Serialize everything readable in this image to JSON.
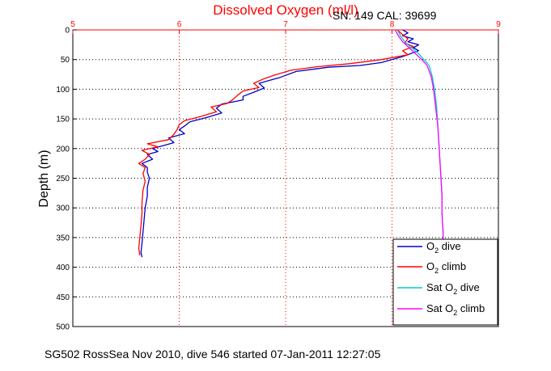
{
  "chart_data": {
    "type": "line",
    "title": "Dissolved Oxygen (ml/l)",
    "calibration_text": "SN: 149  CAL: 39699",
    "ylabel": "Depth (m)",
    "footer": "SG502 RossSea Nov 2010, dive 546 started 07-Jan-2011 12:27:05",
    "xlim": [
      5,
      9
    ],
    "ylim": [
      0,
      500
    ],
    "y_reversed": true,
    "x_ticks": [
      5,
      6,
      7,
      8,
      9
    ],
    "x_tick_labels": [
      "5",
      "6",
      "7",
      "8",
      "9"
    ],
    "y_ticks": [
      0,
      50,
      100,
      150,
      200,
      250,
      300,
      350,
      400,
      450,
      500
    ],
    "y_tick_labels": [
      "0",
      "50",
      "100",
      "150",
      "200",
      "250",
      "300",
      "350",
      "400",
      "450",
      "500"
    ],
    "grid": true,
    "x_axis_position": "top",
    "legend_position": "bottom-right",
    "colors": {
      "title": "#ff0000",
      "x_axis": "#ff0000",
      "grid_x": "#ff0000",
      "grid_y": "#000000",
      "o2_dive": "#0000cc",
      "o2_climb": "#ff0000",
      "sat_dive": "#00cccc",
      "sat_climb": "#ff00ff"
    },
    "series": [
      {
        "name": "O2 dive",
        "legend_base": "O",
        "legend_sub": "2",
        "legend_rest": " dive",
        "color": "#0000cc",
        "points": [
          [
            8.1,
            0
          ],
          [
            8.15,
            5
          ],
          [
            8.1,
            10
          ],
          [
            8.2,
            15
          ],
          [
            8.15,
            20
          ],
          [
            8.25,
            25
          ],
          [
            8.2,
            30
          ],
          [
            8.25,
            35
          ],
          [
            8.1,
            45
          ],
          [
            7.9,
            55
          ],
          [
            7.7,
            60
          ],
          [
            7.4,
            63
          ],
          [
            7.1,
            70
          ],
          [
            6.95,
            80
          ],
          [
            6.85,
            85
          ],
          [
            6.75,
            90
          ],
          [
            6.8,
            98
          ],
          [
            6.7,
            105
          ],
          [
            6.6,
            112
          ],
          [
            6.6,
            118
          ],
          [
            6.4,
            125
          ],
          [
            6.35,
            132
          ],
          [
            6.4,
            140
          ],
          [
            6.25,
            148
          ],
          [
            6.1,
            155
          ],
          [
            6.05,
            162
          ],
          [
            6.0,
            168
          ],
          [
            6.05,
            175
          ],
          [
            5.9,
            182
          ],
          [
            5.95,
            190
          ],
          [
            5.85,
            195
          ],
          [
            5.75,
            200
          ],
          [
            5.8,
            205
          ],
          [
            5.7,
            210
          ],
          [
            5.75,
            218
          ],
          [
            5.65,
            225
          ],
          [
            5.7,
            232
          ],
          [
            5.7,
            240
          ],
          [
            5.72,
            250
          ],
          [
            5.7,
            265
          ],
          [
            5.7,
            280
          ],
          [
            5.68,
            300
          ],
          [
            5.67,
            320
          ],
          [
            5.66,
            340
          ],
          [
            5.65,
            360
          ],
          [
            5.64,
            375
          ],
          [
            5.65,
            383
          ]
        ]
      },
      {
        "name": "O2 climb",
        "legend_base": "O",
        "legend_sub": "2",
        "legend_rest": " climb",
        "color": "#ff0000",
        "points": [
          [
            8.05,
            0
          ],
          [
            8.1,
            8
          ],
          [
            8.15,
            15
          ],
          [
            8.12,
            22
          ],
          [
            8.2,
            28
          ],
          [
            8.1,
            35
          ],
          [
            8.15,
            42
          ],
          [
            7.9,
            50
          ],
          [
            7.6,
            57
          ],
          [
            7.3,
            62
          ],
          [
            7.05,
            68
          ],
          [
            6.9,
            76
          ],
          [
            6.8,
            82
          ],
          [
            6.7,
            90
          ],
          [
            6.75,
            97
          ],
          [
            6.6,
            103
          ],
          [
            6.55,
            110
          ],
          [
            6.5,
            118
          ],
          [
            6.45,
            124
          ],
          [
            6.3,
            130
          ],
          [
            6.35,
            138
          ],
          [
            6.2,
            146
          ],
          [
            6.05,
            153
          ],
          [
            6.0,
            160
          ],
          [
            5.98,
            168
          ],
          [
            5.95,
            176
          ],
          [
            5.9,
            185
          ],
          [
            5.7,
            192
          ],
          [
            5.8,
            197
          ],
          [
            5.65,
            203
          ],
          [
            5.72,
            210
          ],
          [
            5.68,
            218
          ],
          [
            5.62,
            225
          ],
          [
            5.68,
            232
          ],
          [
            5.66,
            242
          ],
          [
            5.68,
            255
          ],
          [
            5.66,
            270
          ],
          [
            5.65,
            290
          ],
          [
            5.65,
            310
          ],
          [
            5.64,
            330
          ],
          [
            5.63,
            350
          ],
          [
            5.62,
            368
          ],
          [
            5.63,
            380
          ]
        ]
      },
      {
        "name": "Sat O2 dive",
        "legend_base": "Sat O",
        "legend_sub": "2",
        "legend_rest": " dive",
        "color": "#00cccc",
        "points": [
          [
            8.05,
            0
          ],
          [
            8.08,
            10
          ],
          [
            8.12,
            20
          ],
          [
            8.18,
            30
          ],
          [
            8.25,
            40
          ],
          [
            8.3,
            50
          ],
          [
            8.35,
            60
          ],
          [
            8.38,
            80
          ],
          [
            8.4,
            100
          ],
          [
            8.42,
            130
          ],
          [
            8.43,
            160
          ],
          [
            8.44,
            190
          ],
          [
            8.45,
            220
          ],
          [
            8.46,
            250
          ],
          [
            8.47,
            280
          ],
          [
            8.47,
            310
          ],
          [
            8.48,
            340
          ],
          [
            8.48,
            355
          ]
        ]
      },
      {
        "name": "Sat O2 climb",
        "legend_base": "Sat O",
        "legend_sub": "2",
        "legend_rest": " climb",
        "color": "#ff00ff",
        "points": [
          [
            8.03,
            0
          ],
          [
            8.06,
            10
          ],
          [
            8.1,
            20
          ],
          [
            8.16,
            30
          ],
          [
            8.22,
            40
          ],
          [
            8.28,
            50
          ],
          [
            8.33,
            60
          ],
          [
            8.37,
            80
          ],
          [
            8.39,
            100
          ],
          [
            8.41,
            130
          ],
          [
            8.43,
            160
          ],
          [
            8.44,
            190
          ],
          [
            8.45,
            220
          ],
          [
            8.46,
            250
          ],
          [
            8.47,
            280
          ],
          [
            8.47,
            310
          ],
          [
            8.48,
            340
          ],
          [
            8.48,
            355
          ]
        ]
      }
    ]
  }
}
